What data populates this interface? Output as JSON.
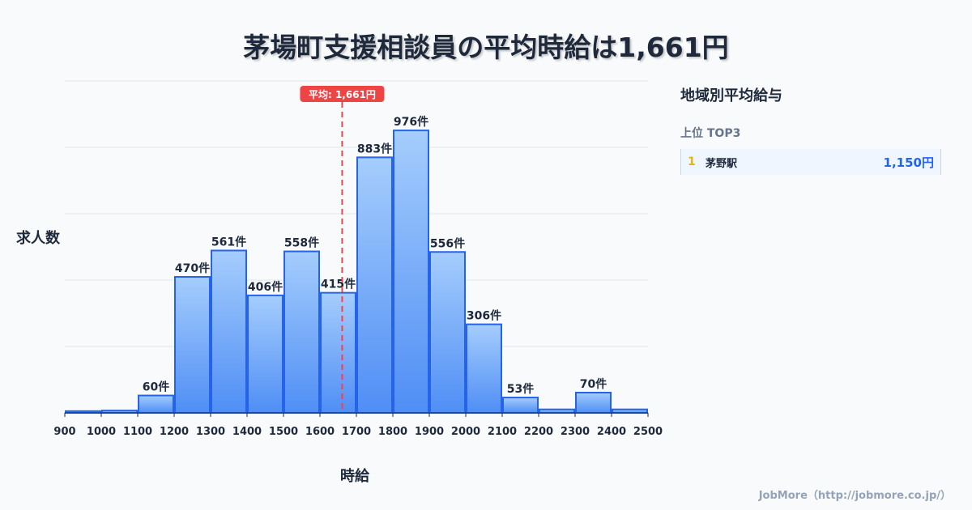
{
  "title": "茅場町支援相談員の平均時給は1,661円",
  "chart_data": {
    "type": "bar",
    "title": "茅場町支援相談員の平均時給は1,661円",
    "xlabel": "時給",
    "ylabel": "求人数",
    "bin_edges": [
      900,
      1000,
      1100,
      1200,
      1300,
      1400,
      1500,
      1600,
      1700,
      1800,
      1900,
      2000,
      2100,
      2200,
      2300,
      2400,
      2500
    ],
    "values": [
      6,
      8,
      60,
      470,
      561,
      406,
      558,
      415,
      883,
      976,
      556,
      306,
      53,
      12,
      70,
      12
    ],
    "labels": [
      "",
      "",
      "60件",
      "470件",
      "561件",
      "406件",
      "558件",
      "415件",
      "883件",
      "976件",
      "556件",
      "306件",
      "53件",
      "",
      "70件",
      ""
    ],
    "ylim": [
      0,
      1147
    ],
    "grid": true,
    "mean": 1661,
    "mean_label": "平均: 1,661円",
    "colors": {
      "bar_top": "#a5cdfd",
      "bar_bottom": "#4f8ef5",
      "bar_stroke": "#2563eb",
      "mean": "#ef4444"
    }
  },
  "sidebar": {
    "title": "地域別平均給与",
    "subtitle": "上位 TOP3",
    "items": [
      {
        "rank": "1",
        "name": "茅野駅",
        "value": "1,150円"
      }
    ]
  },
  "footer": "JobMore（http://jobmore.co.jp/）"
}
